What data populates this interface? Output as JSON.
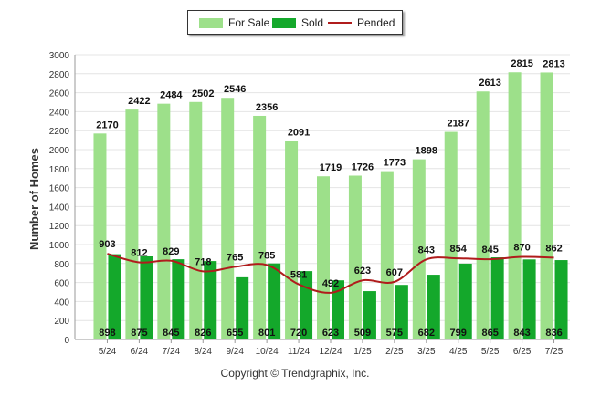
{
  "chart_data": {
    "type": "bar",
    "categories": [
      "5/24",
      "6/24",
      "7/24",
      "8/24",
      "9/24",
      "10/24",
      "11/24",
      "12/24",
      "1/25",
      "2/25",
      "3/25",
      "4/25",
      "5/25",
      "6/25",
      "7/25"
    ],
    "series": [
      {
        "name": "For Sale",
        "type": "bar",
        "color": "#9de08a",
        "values": [
          2170,
          2422,
          2484,
          2502,
          2546,
          2356,
          2091,
          1719,
          1726,
          1773,
          1898,
          2187,
          2613,
          2815,
          2813
        ]
      },
      {
        "name": "Sold",
        "type": "bar",
        "color": "#14a82b",
        "values": [
          898,
          875,
          845,
          826,
          655,
          801,
          720,
          623,
          509,
          575,
          682,
          799,
          865,
          843,
          836
        ]
      },
      {
        "name": "Pended",
        "type": "line",
        "color": "#b01c1c",
        "values": [
          903,
          812,
          829,
          718,
          765,
          785,
          581,
          492,
          623,
          607,
          843,
          854,
          845,
          870,
          862
        ]
      }
    ],
    "ylabel": "Number of Homes",
    "ylim": [
      0,
      3000
    ],
    "yticks": [
      0,
      200,
      400,
      600,
      800,
      1000,
      1200,
      1400,
      1600,
      1800,
      2000,
      2200,
      2400,
      2600,
      2800,
      3000
    ],
    "grid": true,
    "legend_position": "top-center"
  },
  "legend": {
    "for_sale": "For Sale",
    "sold": "Sold",
    "pended": "Pended"
  },
  "footer": {
    "copyright": "Copyright © Trendgraphix, Inc."
  }
}
